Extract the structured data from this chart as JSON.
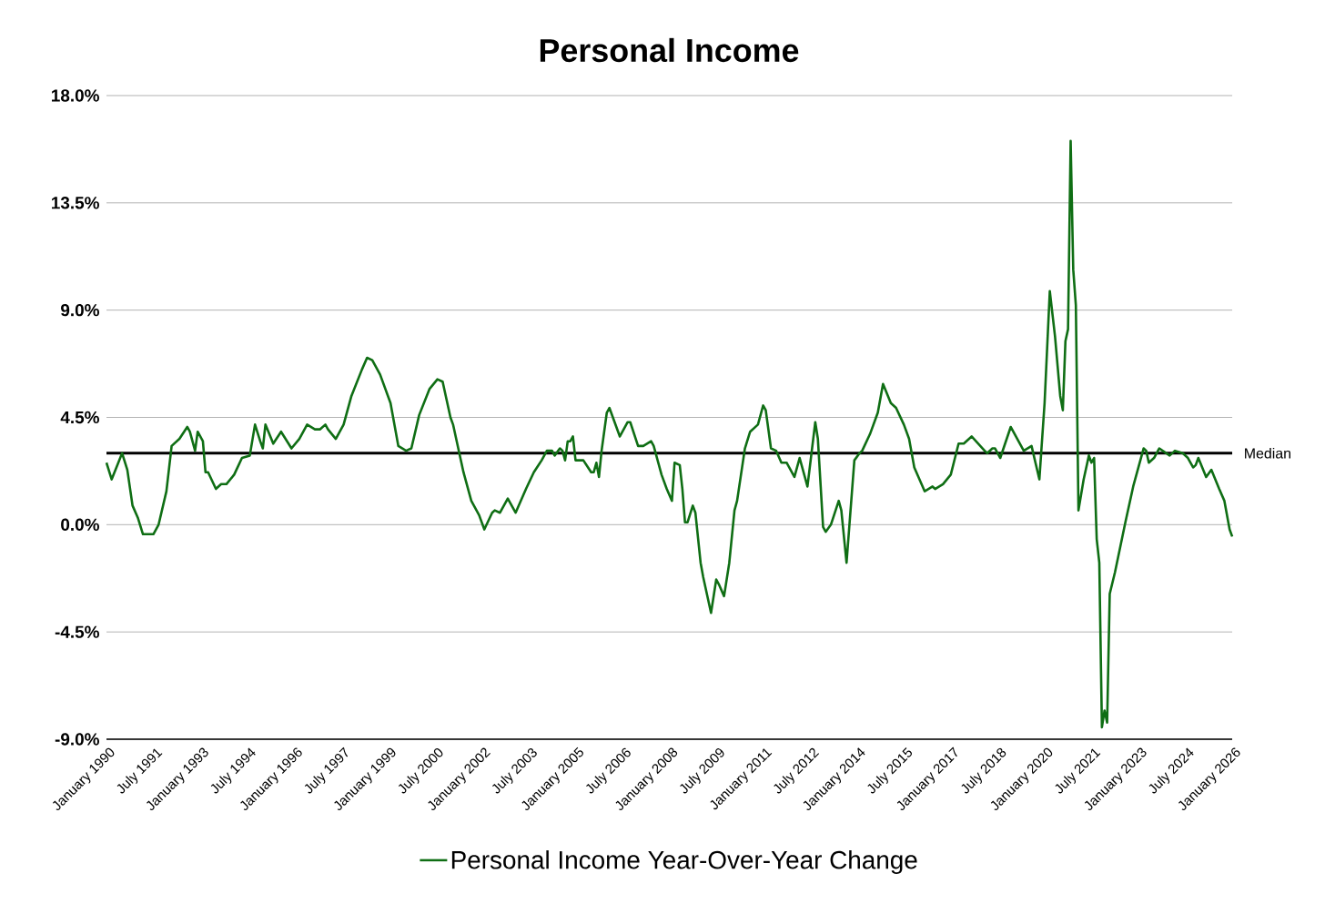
{
  "chart_data": {
    "type": "line",
    "title": "Personal Income",
    "x": [
      "1990-01",
      "1990-03",
      "1990-07",
      "1990-09",
      "1990-11",
      "1991-01",
      "1991-03",
      "1991-07",
      "1991-09",
      "1991-12",
      "1992-02",
      "1992-05",
      "1992-08",
      "1992-09",
      "1992-11",
      "1992-12",
      "1993-02",
      "1993-03",
      "1993-04",
      "1993-07",
      "1993-09",
      "1993-11",
      "1994-02",
      "1994-05",
      "1994-08",
      "1994-10",
      "1994-12",
      "1995-01",
      "1995-02",
      "1995-05",
      "1995-08",
      "1995-12",
      "1996-03",
      "1996-06",
      "1996-09",
      "1996-11",
      "1997-01",
      "1997-02",
      "1997-05",
      "1997-08",
      "1997-11",
      "1998-03",
      "1998-05",
      "1998-07",
      "1998-10",
      "1999-02",
      "1999-05",
      "1999-08",
      "1999-10",
      "2000-01",
      "2000-05",
      "2000-08",
      "2000-10",
      "2001-01",
      "2001-02",
      "2001-06",
      "2001-09",
      "2001-12",
      "2002-02",
      "2002-05",
      "2002-06",
      "2002-08",
      "2002-11",
      "2003-02",
      "2003-06",
      "2003-09",
      "2003-12",
      "2004-02",
      "2004-04",
      "2004-05",
      "2004-07",
      "2004-08",
      "2004-09",
      "2004-10",
      "2004-11",
      "2004-12",
      "2005-01",
      "2005-04",
      "2005-07",
      "2005-08",
      "2005-09",
      "2005-10",
      "2005-11",
      "2006-01",
      "2006-02",
      "2006-06",
      "2006-09",
      "2006-10",
      "2007-01",
      "2007-03",
      "2007-06",
      "2007-07",
      "2007-10",
      "2007-12",
      "2008-02",
      "2008-03",
      "2008-05",
      "2008-06",
      "2008-07",
      "2008-08",
      "2008-10",
      "2008-11",
      "2009-01",
      "2009-02",
      "2009-05",
      "2009-07",
      "2009-08",
      "2009-10",
      "2009-12",
      "2010-02",
      "2010-03",
      "2010-06",
      "2010-08",
      "2010-11",
      "2011-01",
      "2011-02",
      "2011-04",
      "2011-06",
      "2011-08",
      "2011-10",
      "2012-01",
      "2012-03",
      "2012-06",
      "2012-09",
      "2012-10",
      "2012-12",
      "2013-01",
      "2013-03",
      "2013-06",
      "2013-07",
      "2013-09",
      "2013-12",
      "2014-02",
      "2014-03",
      "2014-06",
      "2014-09",
      "2014-11",
      "2015-02",
      "2015-04",
      "2015-07",
      "2015-09",
      "2015-11",
      "2016-03",
      "2016-06",
      "2016-07",
      "2016-10",
      "2017-01",
      "2017-04",
      "2017-06",
      "2017-09",
      "2018-02",
      "2018-03",
      "2018-05",
      "2018-06",
      "2018-08",
      "2018-12",
      "2019-01",
      "2019-05",
      "2019-08",
      "2019-11",
      "2020-01",
      "2020-03",
      "2020-05",
      "2020-07",
      "2020-08",
      "2020-09",
      "2020-10",
      "2020-11",
      "2020-12",
      "2021-01",
      "2021-02",
      "2021-04",
      "2021-06",
      "2021-07",
      "2021-08",
      "2021-09",
      "2021-10",
      "2021-11",
      "2021-12",
      "2022-01",
      "2022-02",
      "2022-04",
      "2022-08",
      "2022-11",
      "2023-03",
      "2023-04",
      "2023-05",
      "2023-07",
      "2023-09",
      "2024-01",
      "2024-03",
      "2024-06",
      "2024-08",
      "2024-10",
      "2024-11",
      "2024-12",
      "2025-03",
      "2025-05",
      "2025-08",
      "2025-10",
      "2025-12",
      "2026-01"
    ],
    "series": [
      {
        "name": "Personal Income Year-Over-Year Change",
        "color": "#0f6e14",
        "values": [
          2.6,
          1.9,
          3.0,
          2.3,
          0.8,
          0.3,
          -0.4,
          -0.4,
          0.0,
          1.4,
          3.3,
          3.6,
          4.1,
          3.9,
          3.1,
          3.9,
          3.5,
          2.2,
          2.2,
          1.5,
          1.7,
          1.7,
          2.1,
          2.8,
          2.9,
          4.2,
          3.5,
          3.2,
          4.2,
          3.4,
          3.9,
          3.2,
          3.6,
          4.2,
          4.0,
          4.0,
          4.2,
          4.0,
          3.6,
          4.2,
          5.4,
          6.5,
          7.0,
          6.9,
          6.3,
          5.1,
          3.3,
          3.1,
          3.2,
          4.6,
          5.7,
          6.1,
          6.0,
          4.5,
          4.2,
          2.2,
          1.0,
          0.4,
          -0.2,
          0.5,
          0.6,
          0.5,
          1.1,
          0.5,
          1.5,
          2.2,
          2.7,
          3.1,
          3.1,
          2.9,
          3.2,
          3.1,
          2.7,
          3.5,
          3.5,
          3.7,
          2.7,
          2.7,
          2.2,
          2.2,
          2.6,
          2.0,
          3.1,
          4.7,
          4.9,
          3.7,
          4.3,
          4.3,
          3.3,
          3.3,
          3.5,
          3.3,
          2.1,
          1.5,
          1.0,
          2.6,
          2.5,
          1.5,
          0.1,
          0.1,
          0.8,
          0.5,
          -1.6,
          -2.2,
          -3.7,
          -2.3,
          -2.5,
          -3.0,
          -1.6,
          0.6,
          1.0,
          3.2,
          3.9,
          4.2,
          5.0,
          4.8,
          3.2,
          3.1,
          2.6,
          2.6,
          2.0,
          2.8,
          1.6,
          4.3,
          3.6,
          -0.1,
          -0.3,
          0.0,
          1.0,
          0.6,
          -1.6,
          2.7,
          3.0,
          3.1,
          3.8,
          4.7,
          5.9,
          5.1,
          4.9,
          4.2,
          3.6,
          2.4,
          1.4,
          1.6,
          1.5,
          1.7,
          2.1,
          3.4,
          3.4,
          3.7,
          3.1,
          3.0,
          3.2,
          3.2,
          2.8,
          4.1,
          3.9,
          3.1,
          3.3,
          1.9,
          5.1,
          9.8,
          7.9,
          5.4,
          4.8,
          7.7,
          8.2,
          16.1,
          10.7,
          9.2,
          0.6,
          1.9,
          2.9,
          2.6,
          2.8,
          -0.6,
          -1.6,
          -8.5,
          -7.8,
          -8.3,
          -2.9,
          -2.0,
          0.1,
          1.6,
          3.2,
          3.1,
          2.6,
          2.8,
          3.2,
          2.9,
          3.1,
          3.0,
          2.8,
          2.4,
          2.5,
          2.8,
          2.0,
          2.3,
          1.5,
          1.0,
          -0.2,
          -0.5
        ]
      }
    ],
    "xlim": [
      "1990-01",
      "2026-01"
    ],
    "xticks": [
      {
        "value": "1990-01",
        "label": "January 1990"
      },
      {
        "value": "1991-07",
        "label": "July 1991"
      },
      {
        "value": "1993-01",
        "label": "January 1993"
      },
      {
        "value": "1994-07",
        "label": "July 1994"
      },
      {
        "value": "1996-01",
        "label": "January 1996"
      },
      {
        "value": "1997-07",
        "label": "July 1997"
      },
      {
        "value": "1999-01",
        "label": "January 1999"
      },
      {
        "value": "2000-07",
        "label": "July 2000"
      },
      {
        "value": "2002-01",
        "label": "January 2002"
      },
      {
        "value": "2003-07",
        "label": "July 2003"
      },
      {
        "value": "2005-01",
        "label": "January 2005"
      },
      {
        "value": "2006-07",
        "label": "July 2006"
      },
      {
        "value": "2008-01",
        "label": "January 2008"
      },
      {
        "value": "2009-07",
        "label": "July 2009"
      },
      {
        "value": "2011-01",
        "label": "January 2011"
      },
      {
        "value": "2012-07",
        "label": "July 2012"
      },
      {
        "value": "2014-01",
        "label": "January 2014"
      },
      {
        "value": "2015-07",
        "label": "July 2015"
      },
      {
        "value": "2017-01",
        "label": "January 2017"
      },
      {
        "value": "2018-07",
        "label": "July 2018"
      },
      {
        "value": "2020-01",
        "label": "January 2020"
      },
      {
        "value": "2021-07",
        "label": "July 2021"
      },
      {
        "value": "2023-01",
        "label": "January 2023"
      },
      {
        "value": "2024-07",
        "label": "July 2024"
      },
      {
        "value": "2026-01",
        "label": "January 2026"
      }
    ],
    "ylim": [
      -9,
      18
    ],
    "yticks": [
      {
        "value": -9,
        "label": "-9.0%"
      },
      {
        "value": -4.5,
        "label": "-4.5%"
      },
      {
        "value": 0,
        "label": "0.0%"
      },
      {
        "value": 4.5,
        "label": "4.5%"
      },
      {
        "value": 9,
        "label": "9.0%"
      },
      {
        "value": 13.5,
        "label": "13.5%"
      },
      {
        "value": 18,
        "label": "18.0%"
      }
    ],
    "grid": "y",
    "legend": "bottom",
    "ref_lines": [
      {
        "axis": "y",
        "value": 3.0,
        "label": "Median",
        "color": "#000000"
      }
    ]
  }
}
